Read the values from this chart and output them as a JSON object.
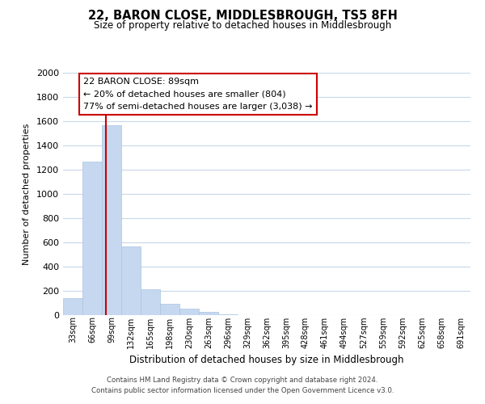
{
  "title": "22, BARON CLOSE, MIDDLESBROUGH, TS5 8FH",
  "subtitle": "Size of property relative to detached houses in Middlesbrough",
  "xlabel": "Distribution of detached houses by size in Middlesbrough",
  "ylabel": "Number of detached properties",
  "bar_labels": [
    "33sqm",
    "66sqm",
    "99sqm",
    "132sqm",
    "165sqm",
    "198sqm",
    "230sqm",
    "263sqm",
    "296sqm",
    "329sqm",
    "362sqm",
    "395sqm",
    "428sqm",
    "461sqm",
    "494sqm",
    "527sqm",
    "559sqm",
    "592sqm",
    "625sqm",
    "658sqm",
    "691sqm"
  ],
  "bar_values": [
    140,
    1265,
    1570,
    570,
    215,
    95,
    55,
    30,
    8,
    0,
    0,
    0,
    0,
    0,
    0,
    0,
    0,
    0,
    0,
    0,
    0
  ],
  "bar_color": "#c5d8f0",
  "bar_edgecolor": "#aac4e0",
  "ylim": [
    0,
    2000
  ],
  "yticks": [
    0,
    200,
    400,
    600,
    800,
    1000,
    1200,
    1400,
    1600,
    1800,
    2000
  ],
  "annotation_title": "22 BARON CLOSE: 89sqm",
  "annotation_line1": "← 20% of detached houses are smaller (804)",
  "annotation_line2": "77% of semi-detached houses are larger (3,038) →",
  "annotation_box_color": "#ffffff",
  "annotation_box_edge": "#cc0000",
  "red_line_color": "#cc0000",
  "grid_color": "#c8d8e8",
  "background_color": "#ffffff",
  "footer_line1": "Contains HM Land Registry data © Crown copyright and database right 2024.",
  "footer_line2": "Contains public sector information licensed under the Open Government Licence v3.0."
}
